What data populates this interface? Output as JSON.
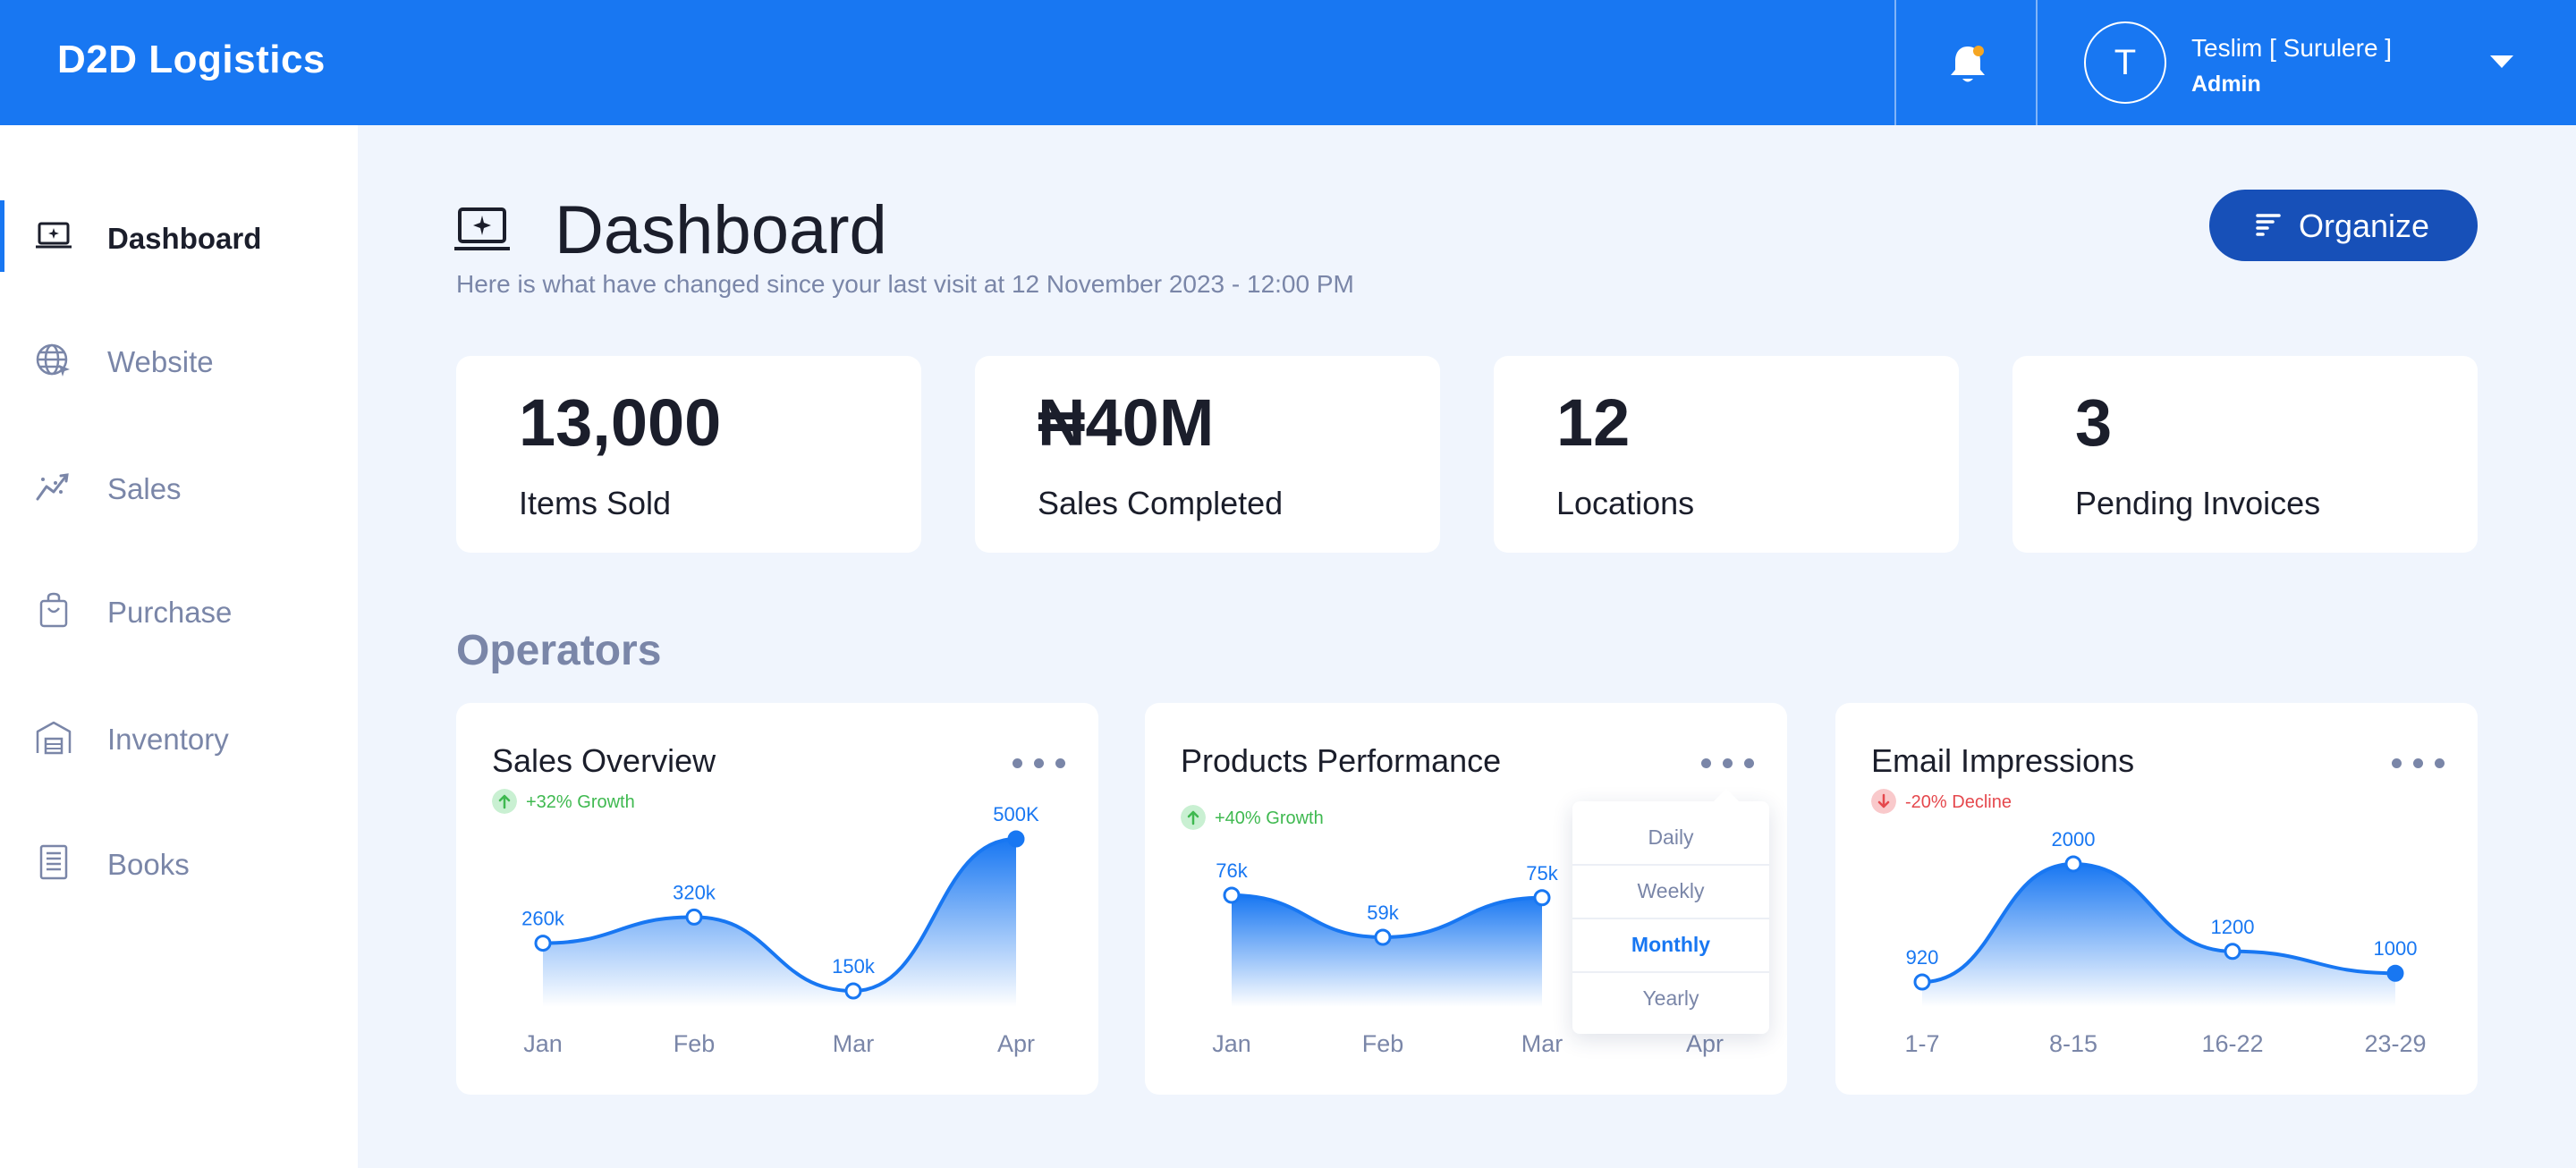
{
  "header": {
    "brand": "D2D Logistics",
    "user": {
      "initial": "T",
      "name": "Teslim [ Surulere ]",
      "role": "Admin"
    }
  },
  "sidebar": {
    "items": [
      {
        "label": "Dashboard",
        "icon": "laptop-sparkle-icon",
        "active": true
      },
      {
        "label": "Website",
        "icon": "globe-cursor-icon"
      },
      {
        "label": "Sales",
        "icon": "trending-chart-icon"
      },
      {
        "label": "Purchase",
        "icon": "shopping-bag-icon"
      },
      {
        "label": "Inventory",
        "icon": "warehouse-icon"
      },
      {
        "label": "Books",
        "icon": "ledger-book-icon"
      }
    ]
  },
  "main": {
    "title": "Dashboard",
    "subtitle": "Here is what have changed since your last visit at 12 November 2023 - 12:00 PM",
    "organize_label": "Organize",
    "section_title": "Operators"
  },
  "stats": [
    {
      "value": "13,000",
      "label": "Items Sold"
    },
    {
      "value": "₦40M",
      "label": "Sales Completed"
    },
    {
      "value": "12",
      "label": "Locations"
    },
    {
      "value": "3",
      "label": "Pending Invoices"
    }
  ],
  "dropdown": {
    "options": [
      "Daily",
      "Weekly",
      "Monthly",
      "Yearly"
    ],
    "selected": "Monthly"
  },
  "colors": {
    "accent": "#1877f2",
    "button": "#1750b8",
    "muted": "#7a86a8",
    "growth": "#3fb950",
    "decline": "#e5484d"
  },
  "chart_data": [
    {
      "type": "area",
      "title": "Sales Overview",
      "badge": {
        "text": "+32% Growth",
        "trend": "up"
      },
      "categories": [
        "Jan",
        "Feb",
        "Mar",
        "Apr"
      ],
      "values": [
        260,
        320,
        150,
        500
      ],
      "value_labels": [
        "260k",
        "320k",
        "150k",
        "500K"
      ]
    },
    {
      "type": "area",
      "title": "Products Performance",
      "badge": {
        "text": "+40% Growth",
        "trend": "up"
      },
      "categories": [
        "Jan",
        "Feb",
        "Mar",
        "Apr"
      ],
      "values": [
        76,
        59,
        75,
        null
      ],
      "value_labels": [
        "76k",
        "59k",
        "75k",
        ""
      ]
    },
    {
      "type": "area",
      "title": "Email Impressions",
      "badge": {
        "text": "-20% Decline",
        "trend": "down"
      },
      "categories": [
        "1-7",
        "8-15",
        "16-22",
        "23-29"
      ],
      "values": [
        920,
        2000,
        1200,
        1000
      ],
      "value_labels": [
        "920",
        "2000",
        "1200",
        "1000"
      ]
    }
  ]
}
